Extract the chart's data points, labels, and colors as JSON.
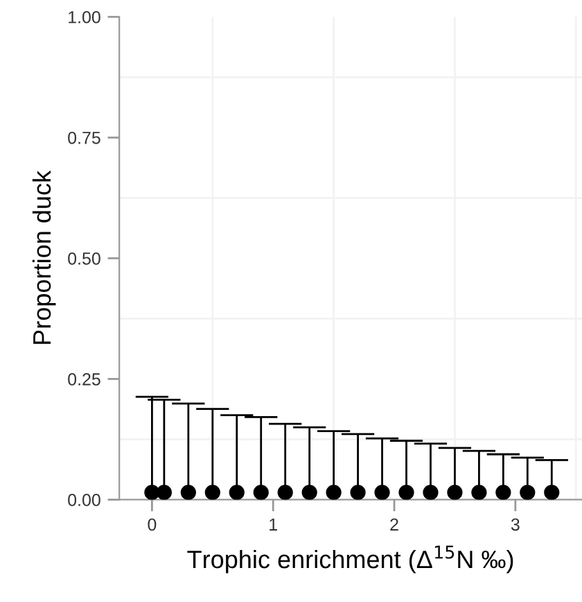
{
  "chart_data": {
    "type": "scatter",
    "xlabel": "Trophic enrichment (Δ$^{15}$N ‰)",
    "ylabel": "Proportion duck",
    "x": [
      0,
      0.1,
      0.3,
      0.5,
      0.7,
      0.9,
      1.1,
      1.3,
      1.5,
      1.7,
      1.9,
      2.1,
      2.3,
      2.5,
      2.7,
      2.9,
      3.1,
      3.3
    ],
    "series": [
      {
        "color": "#000000",
        "values": [
          0.015,
          0.015,
          0.015,
          0.015,
          0.015,
          0.015,
          0.015,
          0.015,
          0.015,
          0.015,
          0.015,
          0.015,
          0.015,
          0.015,
          0.015,
          0.015,
          0.015,
          0.015
        ],
        "errors": [
          [
            0.015,
            0.213
          ],
          [
            0.015,
            0.207
          ],
          [
            0.015,
            0.199
          ],
          [
            0.015,
            0.188
          ],
          [
            0.015,
            0.175
          ],
          [
            0.015,
            0.171
          ],
          [
            0.015,
            0.157
          ],
          [
            0.015,
            0.15
          ],
          [
            0.015,
            0.142
          ],
          [
            0.015,
            0.136
          ],
          [
            0.015,
            0.127
          ],
          [
            0.015,
            0.122
          ],
          [
            0.015,
            0.116
          ],
          [
            0.015,
            0.107
          ],
          [
            0.015,
            0.101
          ],
          [
            0.015,
            0.094
          ],
          [
            0.015,
            0.087
          ],
          [
            0.015,
            0.082
          ]
        ]
      }
    ],
    "xlim": [
      -0.27,
      3.55
    ],
    "xticks": [
      0,
      1,
      2,
      3
    ],
    "ylim": [
      0,
      1
    ],
    "yticks": [
      {
        "value": 0,
        "label": "0.00"
      },
      {
        "value": 0.25,
        "label": "0.25"
      },
      {
        "value": 0.5,
        "label": "0.50"
      },
      {
        "value": 0.75,
        "label": "0.75"
      },
      {
        "value": 1,
        "label": "1.00"
      }
    ],
    "grid": true,
    "marker": "circle"
  }
}
